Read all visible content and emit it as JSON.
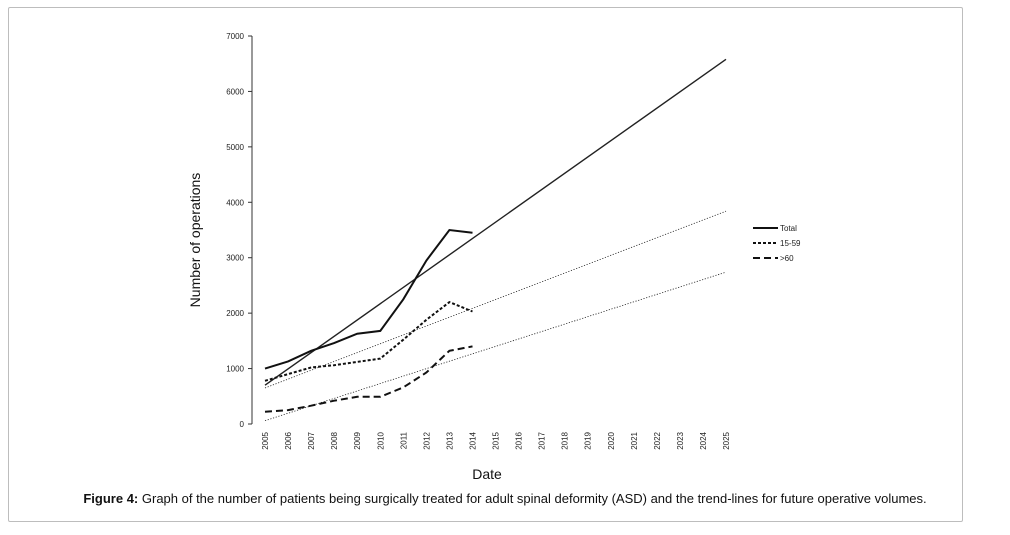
{
  "caption": {
    "label": "Figure 4:",
    "text": " Graph of the number of patients being surgically treated for adult spinal deformity (ASD) and the trend-lines for future operative volumes."
  },
  "chart_data": {
    "type": "line",
    "ylabel": "Number of operations",
    "xlabel": "Date",
    "ylim": [
      0,
      7000
    ],
    "yticks": [
      0,
      1000,
      2000,
      3000,
      4000,
      5000,
      6000,
      7000
    ],
    "categories": [
      "2005",
      "2006",
      "2007",
      "2008",
      "2009",
      "2010",
      "2011",
      "2012",
      "2013",
      "2014",
      "2015",
      "2016",
      "2017",
      "2018",
      "2019",
      "2020",
      "2021",
      "2022",
      "2023",
      "2024",
      "2025"
    ],
    "legend_position": "right",
    "grid": false,
    "series": [
      {
        "name": "Total",
        "style": "solid",
        "x": [
          "2005",
          "2006",
          "2007",
          "2008",
          "2009",
          "2010",
          "2011",
          "2012",
          "2013",
          "2014"
        ],
        "values": [
          1000,
          1130,
          1320,
          1460,
          1630,
          1680,
          2250,
          2950,
          3500,
          3450
        ]
      },
      {
        "name": "15-59",
        "style": "dotted",
        "x": [
          "2005",
          "2006",
          "2007",
          "2008",
          "2009",
          "2010",
          "2011",
          "2012",
          "2013",
          "2014"
        ],
        "values": [
          780,
          900,
          1020,
          1060,
          1120,
          1180,
          1520,
          1880,
          2200,
          2030
        ]
      },
      {
        "name": ">60",
        "style": "dashed",
        "x": [
          "2005",
          "2006",
          "2007",
          "2008",
          "2009",
          "2010",
          "2011",
          "2012",
          "2013",
          "2014"
        ],
        "values": [
          220,
          250,
          330,
          420,
          490,
          490,
          660,
          930,
          1320,
          1400
        ]
      }
    ],
    "trendlines": [
      {
        "of": "Total",
        "from": [
          "2005",
          700
        ],
        "to": [
          "2025",
          6580
        ]
      },
      {
        "of": "15-59",
        "from": [
          "2005",
          650
        ],
        "to": [
          "2025",
          3840
        ]
      },
      {
        "of": ">60",
        "from": [
          "2005",
          60
        ],
        "to": [
          "2025",
          2740
        ]
      }
    ]
  }
}
